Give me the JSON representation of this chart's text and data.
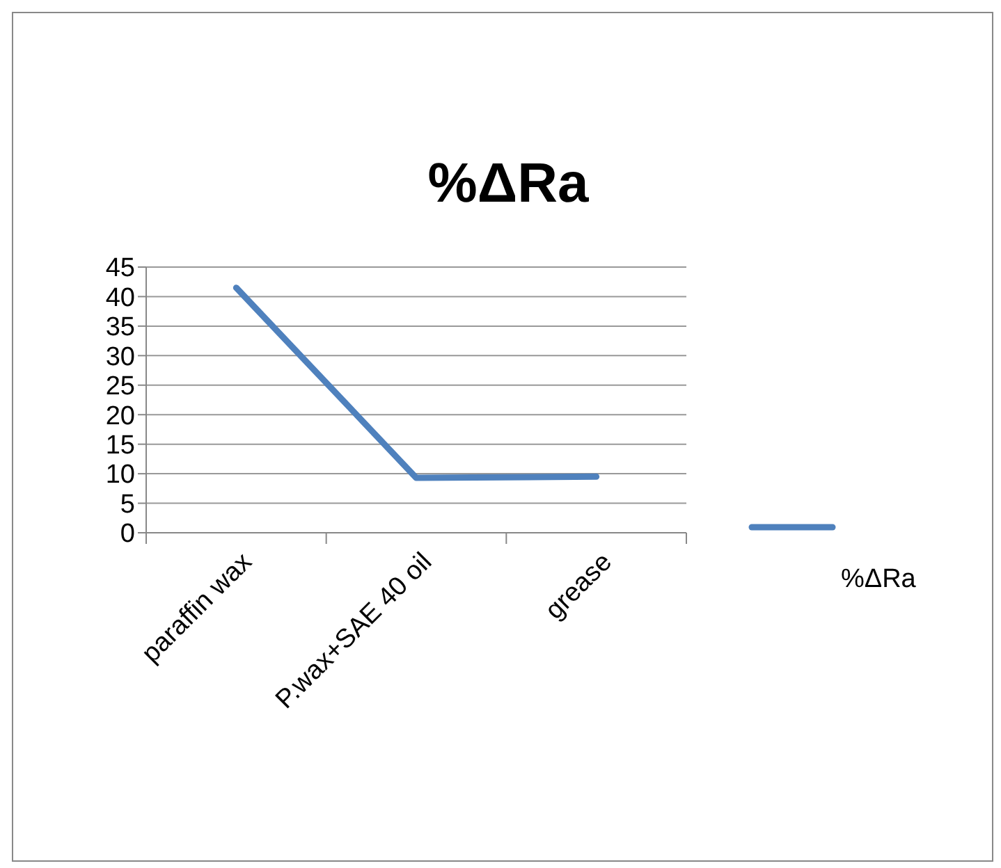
{
  "chart_data": {
    "type": "line",
    "title": "%ΔRa",
    "categories": [
      "paraffin wax",
      "P.wax+SAE 40 oil",
      "grease"
    ],
    "series": [
      {
        "name": "%ΔRa",
        "color": "#4f81bd",
        "values": [
          41.5,
          9.3,
          9.5
        ]
      }
    ],
    "ylim": [
      0,
      45
    ],
    "yticks": [
      0,
      5,
      10,
      15,
      20,
      25,
      30,
      35,
      40,
      45
    ],
    "grid": "y",
    "legend": "right",
    "marker": "none",
    "line_style": "solid"
  }
}
